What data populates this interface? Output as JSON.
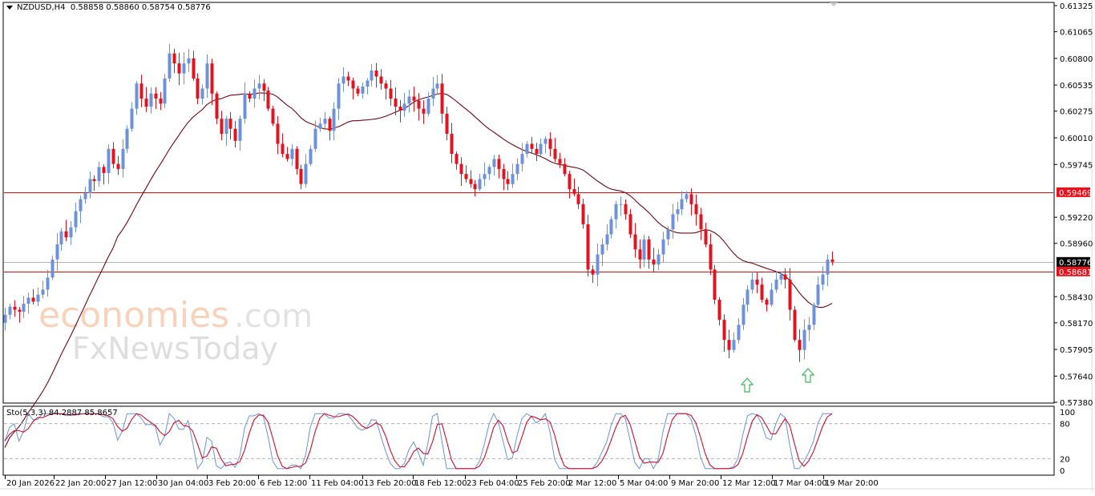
{
  "header": {
    "symbol": "NZDUSD,H4",
    "ohlc_text": "0.58858 0.58860 0.58754 0.58776",
    "open": "0.58858",
    "high": "0.58860",
    "low": "0.58754",
    "close": "0.58776"
  },
  "indicator": {
    "label": "Sto(5,3,3) 84.2887 85.8657",
    "main_value": "84.2887",
    "signal_value": "85.8657",
    "levels": [
      "100",
      "80",
      "20",
      "0"
    ]
  },
  "price_axis": {
    "ticks": [
      "0.61325",
      "0.61065",
      "0.60800",
      "0.60535",
      "0.60275",
      "0.60010",
      "0.59745",
      "0.59220",
      "0.58960",
      "0.58430",
      "0.58170",
      "0.57905",
      "0.57640",
      "0.57380"
    ],
    "current_price": "0.58776",
    "level_labels": [
      "0.59469",
      "0.58681"
    ]
  },
  "time_axis": {
    "ticks": [
      "20 Jan 2026",
      "22 Jan 20:00",
      "27 Jan 12:00",
      "30 Jan 04:00",
      "3 Feb 20:00",
      "6 Feb 12:00",
      "11 Feb 04:00",
      "13 Feb 20:00",
      "18 Feb 12:00",
      "23 Feb 04:00",
      "25 Feb 20:00",
      "2 Mar 12:00",
      "5 Mar 04:00",
      "9 Mar 20:00",
      "12 Mar 12:00",
      "17 Mar 04:00",
      "19 Mar 20:00"
    ]
  },
  "watermark": {
    "line1_main": "economies",
    "line1_suffix": ".com",
    "line2_a": "F",
    "line2_x": "x",
    "line2_b": "NewsToday"
  },
  "colors": {
    "bull": "#6d92d8",
    "bear": "#e0141e",
    "ma": "#6b0a14",
    "level": "#d01010",
    "current": "#b4b4b4",
    "arrow": "#3cb45a"
  },
  "chart_data": {
    "type": "candlestick",
    "title": "NZDUSD,H4",
    "xlabel": "",
    "ylabel": "",
    "ylim": [
      0.5738,
      0.61325
    ],
    "horizontal_lines": [
      {
        "price": 0.59469,
        "color": "#d01010",
        "label": "resistance"
      },
      {
        "price": 0.58681,
        "color": "#d01010",
        "label": "support"
      },
      {
        "price": 0.58776,
        "color": "#b4b4b4",
        "label": "current price"
      }
    ],
    "annotations": [
      {
        "type": "up-arrow",
        "x_label": "near 12 Mar 12:00",
        "note": "double bottom low 1"
      },
      {
        "type": "up-arrow",
        "x_label": "17 Mar 04:00",
        "note": "double bottom low 2"
      }
    ],
    "closes": [
      0.5825,
      0.5833,
      0.583,
      0.5828,
      0.5836,
      0.5842,
      0.5838,
      0.5845,
      0.585,
      0.5862,
      0.588,
      0.5895,
      0.5908,
      0.5902,
      0.5912,
      0.5928,
      0.594,
      0.5946,
      0.596,
      0.5958,
      0.5972,
      0.5966,
      0.599,
      0.5975,
      0.597,
      0.599,
      0.601,
      0.603,
      0.6055,
      0.604,
      0.6032,
      0.6045,
      0.604,
      0.6035,
      0.606,
      0.6085,
      0.6075,
      0.6065,
      0.6075,
      0.608,
      0.606,
      0.604,
      0.605,
      0.6075,
      0.6045,
      0.602,
      0.6005,
      0.602,
      0.601,
      0.5998,
      0.602,
      0.6045,
      0.604,
      0.605,
      0.6055,
      0.6048,
      0.603,
      0.6015,
      0.5995,
      0.5985,
      0.598,
      0.599,
      0.597,
      0.5955,
      0.5975,
      0.599,
      0.601,
      0.6015,
      0.602,
      0.6008,
      0.603,
      0.6055,
      0.6062,
      0.6058,
      0.605,
      0.6045,
      0.6052,
      0.6058,
      0.6068,
      0.6062,
      0.6055,
      0.605,
      0.604,
      0.6032,
      0.6028,
      0.6035,
      0.6042,
      0.6038,
      0.603,
      0.6025,
      0.604,
      0.605,
      0.6055,
      0.6025,
      0.6005,
      0.5985,
      0.5975,
      0.5965,
      0.596,
      0.5955,
      0.595,
      0.596,
      0.5965,
      0.5972,
      0.598,
      0.597,
      0.596,
      0.5955,
      0.5965,
      0.5975,
      0.5985,
      0.5995,
      0.599,
      0.5985,
      0.5995,
      0.6,
      0.599,
      0.598,
      0.5975,
      0.5965,
      0.595,
      0.5945,
      0.5935,
      0.5915,
      0.587,
      0.5865,
      0.5885,
      0.5895,
      0.5905,
      0.592,
      0.5935,
      0.5935,
      0.5925,
      0.5905,
      0.589,
      0.588,
      0.59,
      0.588,
      0.5875,
      0.5885,
      0.59,
      0.591,
      0.5925,
      0.593,
      0.594,
      0.5945,
      0.5935,
      0.5925,
      0.591,
      0.5895,
      0.587,
      0.584,
      0.582,
      0.58,
      0.579,
      0.58,
      0.5815,
      0.5835,
      0.585,
      0.586,
      0.5855,
      0.584,
      0.5835,
      0.585,
      0.586,
      0.5865,
      0.586,
      0.583,
      0.58,
      0.579,
      0.581,
      0.5815,
      0.5835,
      0.5855,
      0.5865,
      0.588,
      0.58776
    ]
  }
}
